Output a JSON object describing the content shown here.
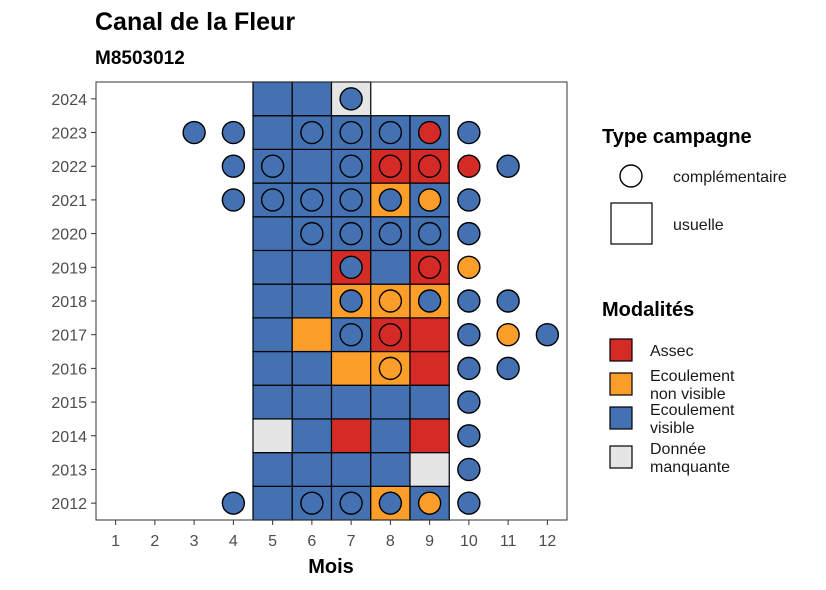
{
  "chart_data": {
    "type": "heatmap",
    "title": "Canal de la Fleur",
    "subtitle": "M8503012",
    "xlabel": "Mois",
    "ylabel": "",
    "x_ticks": [
      "1",
      "2",
      "3",
      "4",
      "5",
      "6",
      "7",
      "8",
      "9",
      "10",
      "11",
      "12"
    ],
    "y_ticks": [
      "2012",
      "2013",
      "2014",
      "2015",
      "2016",
      "2017",
      "2018",
      "2019",
      "2020",
      "2021",
      "2022",
      "2023",
      "2024"
    ],
    "xlim": [
      0.5,
      12.5
    ],
    "ylim": [
      2011.5,
      2024.5
    ],
    "grid": false,
    "legend_position": "right",
    "colors": {
      "Assec": "#d52b27",
      "Ecoulement non visible": "#fd9e2a",
      "Ecoulement visible": "#4371b2",
      "Donnée manquante": "#e5e5e5"
    },
    "type_legend": {
      "title": "Type campagne",
      "entries": [
        {
          "shape": "circle",
          "label": "complémentaire"
        },
        {
          "shape": "square",
          "label": "usuelle"
        }
      ]
    },
    "modalite_legend": {
      "title": "Modalités",
      "entries": [
        {
          "key": "Assec",
          "lines": [
            "Assec"
          ]
        },
        {
          "key": "Ecoulement non visible",
          "lines": [
            "Ecoulement",
            "non visible"
          ]
        },
        {
          "key": "Ecoulement visible",
          "lines": [
            "Ecoulement",
            "visible"
          ]
        },
        {
          "key": "Donnée manquante",
          "lines": [
            "Donnée",
            "manquante"
          ]
        }
      ]
    },
    "usuelle": {
      "2024": {
        "5": "Ecoulement visible",
        "6": "Ecoulement visible",
        "7": "Donnée manquante"
      },
      "2023": {
        "5": "Ecoulement visible",
        "6": "Ecoulement visible",
        "7": "Ecoulement visible",
        "8": "Ecoulement visible",
        "9": "Ecoulement visible"
      },
      "2022": {
        "5": "Ecoulement visible",
        "6": "Ecoulement visible",
        "7": "Ecoulement visible",
        "8": "Assec",
        "9": "Assec"
      },
      "2021": {
        "5": "Ecoulement visible",
        "6": "Ecoulement visible",
        "7": "Ecoulement visible",
        "8": "Ecoulement non visible",
        "9": "Ecoulement visible"
      },
      "2020": {
        "5": "Ecoulement visible",
        "6": "Ecoulement visible",
        "7": "Ecoulement visible",
        "8": "Ecoulement visible",
        "9": "Ecoulement visible"
      },
      "2019": {
        "5": "Ecoulement visible",
        "6": "Ecoulement visible",
        "7": "Assec",
        "8": "Ecoulement visible",
        "9": "Assec"
      },
      "2018": {
        "5": "Ecoulement visible",
        "6": "Ecoulement visible",
        "7": "Ecoulement non visible",
        "8": "Ecoulement non visible",
        "9": "Ecoulement non visible"
      },
      "2017": {
        "5": "Ecoulement visible",
        "6": "Ecoulement non visible",
        "7": "Ecoulement visible",
        "8": "Assec",
        "9": "Assec"
      },
      "2016": {
        "5": "Ecoulement visible",
        "6": "Ecoulement visible",
        "7": "Ecoulement non visible",
        "8": "Ecoulement non visible",
        "9": "Assec"
      },
      "2015": {
        "5": "Ecoulement visible",
        "6": "Ecoulement visible",
        "7": "Ecoulement visible",
        "8": "Ecoulement visible",
        "9": "Ecoulement visible"
      },
      "2014": {
        "5": "Donnée manquante",
        "6": "Ecoulement visible",
        "7": "Assec",
        "8": "Ecoulement visible",
        "9": "Assec"
      },
      "2013": {
        "5": "Ecoulement visible",
        "6": "Ecoulement visible",
        "7": "Ecoulement visible",
        "8": "Ecoulement visible",
        "9": "Donnée manquante"
      },
      "2012": {
        "5": "Ecoulement visible",
        "6": "Ecoulement visible",
        "7": "Ecoulement visible",
        "8": "Ecoulement non visible",
        "9": "Ecoulement visible"
      }
    },
    "complementaire": {
      "2024": {
        "7": "Ecoulement visible"
      },
      "2023": {
        "3": "Ecoulement visible",
        "4": "Ecoulement visible",
        "6": "Ecoulement visible",
        "7": "Ecoulement visible",
        "8": "Ecoulement visible",
        "9": "Assec",
        "10": "Ecoulement visible"
      },
      "2022": {
        "4": "Ecoulement visible",
        "5": "Ecoulement visible",
        "7": "Ecoulement visible",
        "8": "Assec",
        "9": "Assec",
        "10": "Assec",
        "11": "Ecoulement visible"
      },
      "2021": {
        "4": "Ecoulement visible",
        "5": "Ecoulement visible",
        "6": "Ecoulement visible",
        "7": "Ecoulement visible",
        "8": "Ecoulement visible",
        "9": "Ecoulement non visible",
        "10": "Ecoulement visible"
      },
      "2020": {
        "6": "Ecoulement visible",
        "7": "Ecoulement visible",
        "8": "Ecoulement visible",
        "9": "Ecoulement visible",
        "10": "Ecoulement visible"
      },
      "2019": {
        "7": "Ecoulement visible",
        "9": "Assec",
        "10": "Ecoulement non visible"
      },
      "2018": {
        "7": "Ecoulement visible",
        "8": "Ecoulement non visible",
        "9": "Ecoulement visible",
        "10": "Ecoulement visible",
        "11": "Ecoulement visible"
      },
      "2017": {
        "7": "Ecoulement visible",
        "8": "Assec",
        "10": "Ecoulement visible",
        "11": "Ecoulement non visible",
        "12": "Ecoulement visible"
      },
      "2016": {
        "8": "Ecoulement non visible",
        "10": "Ecoulement visible",
        "11": "Ecoulement visible"
      },
      "2015": {
        "10": "Ecoulement visible"
      },
      "2014": {
        "10": "Ecoulement visible"
      },
      "2013": {
        "10": "Ecoulement visible"
      },
      "2012": {
        "4": "Ecoulement visible",
        "6": "Ecoulement visible",
        "7": "Ecoulement visible",
        "8": "Ecoulement visible",
        "9": "Ecoulement non visible",
        "10": "Ecoulement visible"
      }
    }
  }
}
